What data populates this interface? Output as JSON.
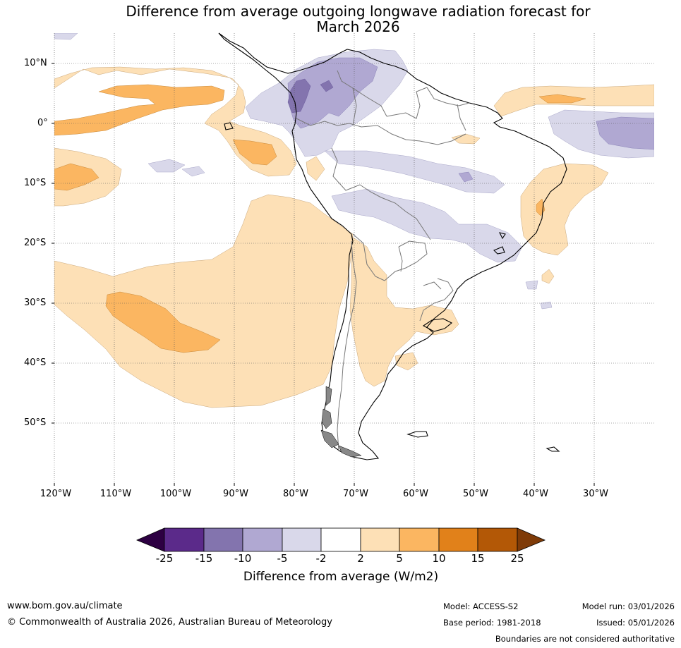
{
  "title": {
    "line1": "Difference from average outgoing longwave radiation forecast for",
    "line2": "March 2026"
  },
  "axes": {
    "lat_labels": [
      "10°N",
      "0°",
      "10°S",
      "20°S",
      "30°S",
      "40°S",
      "50°S"
    ],
    "lon_labels": [
      "120°W",
      "110°W",
      "100°W",
      "90°W",
      "80°W",
      "70°W",
      "60°W",
      "50°W",
      "40°W",
      "30°W"
    ],
    "lat_values": [
      10,
      0,
      -10,
      -20,
      -30,
      -40,
      -50
    ],
    "lon_values": [
      -120,
      -110,
      -100,
      -90,
      -80,
      -70,
      -60,
      -50,
      -40,
      -30
    ]
  },
  "colorbar": {
    "title": "Difference from average (W/m2)",
    "tick_labels": [
      "-25",
      "-15",
      "-10",
      "-5",
      "-2",
      "2",
      "5",
      "10",
      "15",
      "25"
    ],
    "bin_colors": [
      "#5b2a8a",
      "#8374ae",
      "#b0a8d2",
      "#d9d8ea",
      "#ffffff",
      "#fde0b6",
      "#fbb661",
      "#e1811a",
      "#b35806"
    ],
    "below_color": "#2d0042",
    "above_color": "#7f3b08"
  },
  "footer": {
    "website": "www.bom.gov.au/climate",
    "copyright": "© Commonwealth of Australia 2026, Australian Bureau of Meteorology",
    "model": "Model: ACCESS-S2",
    "base_period": "Base period: 1981-2018",
    "model_run": "Model run: 03/01/2026",
    "issued": "Issued: 05/01/2026",
    "disclaimer": "Boundaries are not considered authoritative"
  }
}
